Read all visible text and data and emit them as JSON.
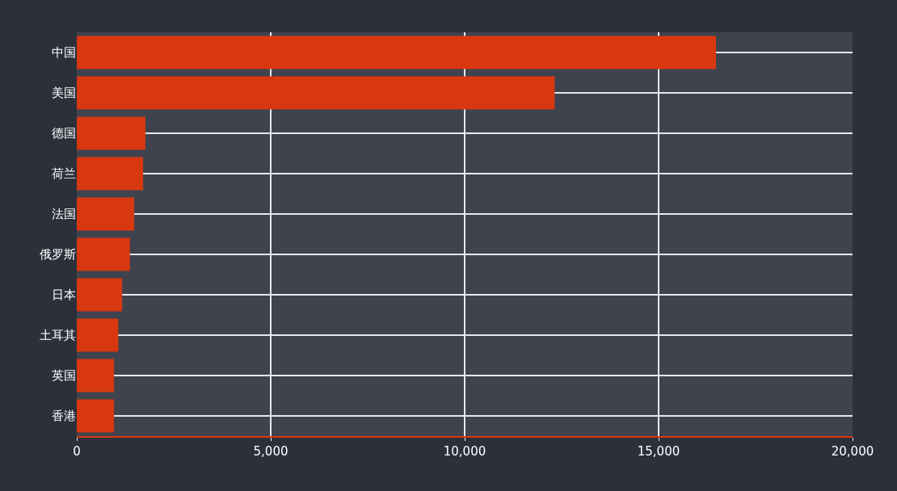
{
  "chart_data": {
    "type": "bar",
    "orientation": "horizontal",
    "categories": [
      "中国",
      "美国",
      "德国",
      "荷兰",
      "法国",
      "俄罗斯",
      "日本",
      "土耳其",
      "英国",
      "香港"
    ],
    "values": [
      16480,
      12320,
      1770,
      1710,
      1480,
      1370,
      1170,
      1070,
      960,
      960
    ],
    "color": "#d8380f",
    "xlim": [
      0,
      20000
    ],
    "xticks": [
      0,
      {
        "value": 5000,
        "label": "5,000"
      },
      {
        "value": 10000,
        "label": "10,000"
      },
      {
        "value": 15000,
        "label": "15,000"
      },
      {
        "value": 20000,
        "label": "20,000"
      }
    ],
    "grid": true
  }
}
